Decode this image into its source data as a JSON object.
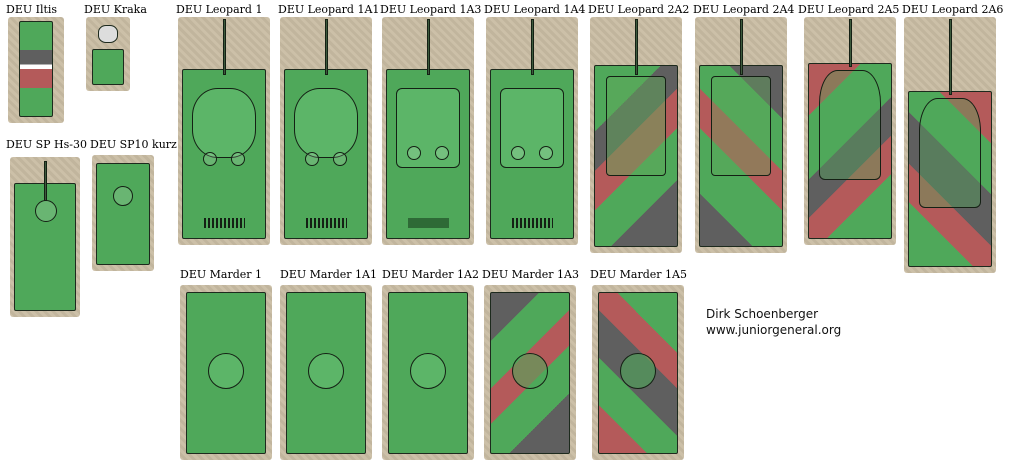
{
  "colors": {
    "tile_bg": "#c9bca3",
    "green": "#4fa85a",
    "green_dark": "#3a8a45",
    "camo_red": "#b45a5a",
    "camo_grey": "#5f5f5f",
    "outline": "#142014"
  },
  "vehicles": {
    "iltis": "DEU Iltis",
    "kraka": "DEU Kraka",
    "leopard1": "DEU Leopard 1",
    "leopard1a1": "DEU Leopard 1A1",
    "leopard1a3": "DEU Leopard 1A3",
    "leopard1a4": "DEU Leopard 1A4",
    "leopard2a2": "DEU Leopard 2A2",
    "leopard2a4": "DEU Leopard 2A4",
    "leopard2a5": "DEU Leopard 2A5",
    "leopard2a6": "DEU Leopard 2A6",
    "sphs30": "DEU SP Hs-30",
    "sp10kurz": "DEU SP10 kurz",
    "marder1": "DEU Marder 1",
    "marder1a1": "DEU Marder 1A1",
    "marder1a2": "DEU Marder 1A2",
    "marder1a3": "DEU Marder 1A3",
    "marder1a5": "DEU Marder 1A5"
  },
  "credit": {
    "author": "Dirk Schoenberger",
    "site": "www.juniorgeneral.org"
  }
}
